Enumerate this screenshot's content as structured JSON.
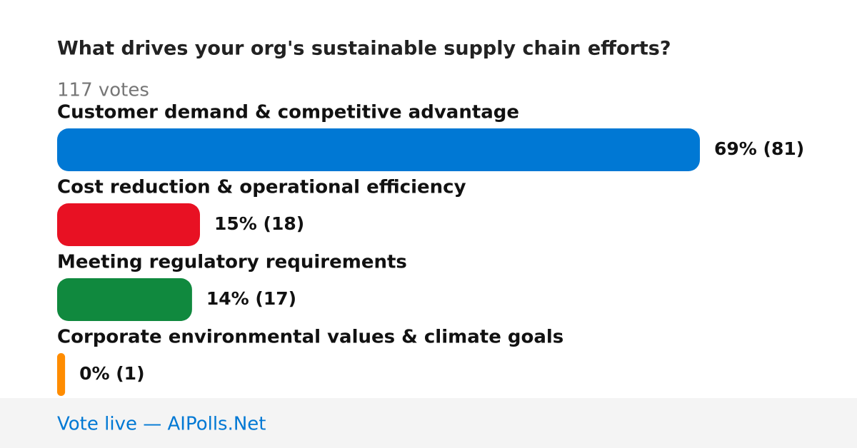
{
  "chart_data": {
    "type": "bar",
    "orientation": "horizontal",
    "title": "What drives your org's sustainable supply chain efforts?",
    "subtitle": "117 votes",
    "categories": [
      "Customer demand & competitive advantage",
      "Cost reduction & operational efficiency",
      "Meeting regulatory requirements",
      "Corporate environmental values & climate goals"
    ],
    "values": [
      81,
      18,
      17,
      1
    ],
    "value_labels": [
      "69% (81)",
      "15% (18)",
      "14% (17)",
      "0% (1)"
    ],
    "colors": [
      "#0078d4",
      "#e81123",
      "#10893e",
      "#ff8c00"
    ]
  },
  "footer": "Vote live — AIPolls.Net"
}
